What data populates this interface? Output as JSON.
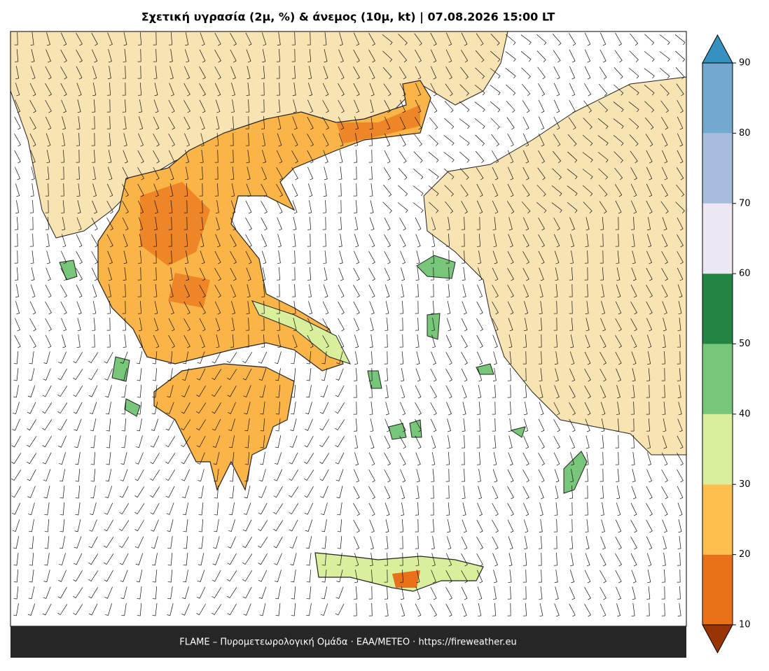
{
  "title": "Σχετική υγρασία (2μ, %) & άνεμος (10μ, kt)  |  07.08.2026 15:00 LT",
  "footer": "FLAME – Πυρομετεωρολογική Ομάδα · ΕΑΑ/METEO · https://fireweather.eu",
  "colorbar": {
    "ticks": [
      10,
      20,
      30,
      40,
      50,
      60,
      70,
      80,
      90
    ],
    "colors": [
      "#e8711a",
      "#fdc04d",
      "#d9ef9b",
      "#78c679",
      "#238443",
      "#ece7f2",
      "#a6bddb",
      "#74a9cf"
    ],
    "under_color": "#993404",
    "over_color": "#3690c0"
  }
}
